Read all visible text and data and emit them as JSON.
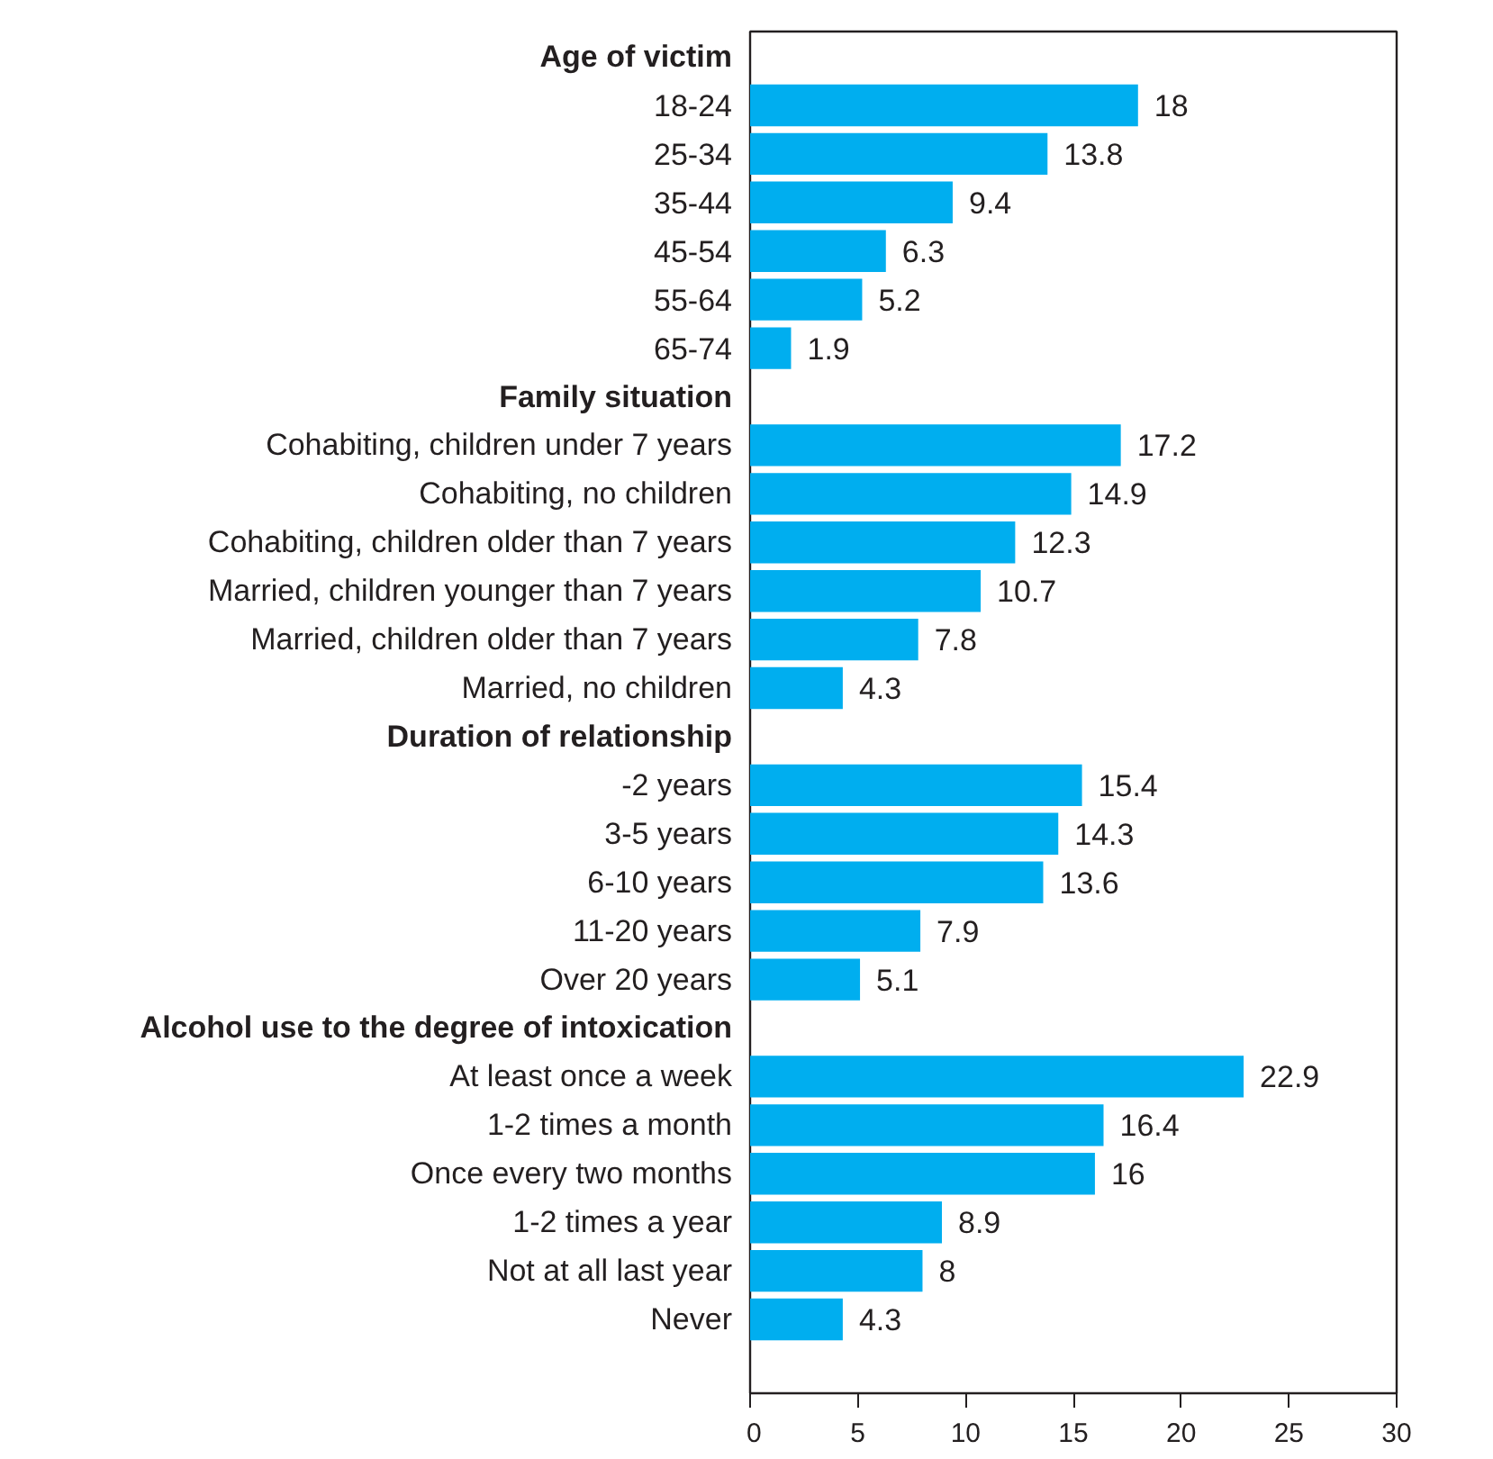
{
  "chart_data": {
    "type": "bar",
    "orientation": "horizontal",
    "categories": [
      "Age of victim",
      "18-24",
      "25-34",
      "35-44",
      "45-54",
      "55-64",
      "65-74",
      "Family situation",
      "Cohabiting, children under 7 years",
      "Cohabiting, no children",
      "Cohabiting, children older than 7 years",
      "Married, children younger than 7 years",
      "Married, children older than 7 years",
      "Married, no children",
      "Duration of relationship",
      "-2 years",
      "3-5 years",
      "6-10 years",
      "11-20 years",
      "Over 20 years",
      "Alcohol use to the degree of intoxication",
      "At least once a week",
      "1-2 times a month",
      "Once every two months",
      "1-2 times a year",
      "Not at all last year",
      "Never"
    ],
    "values": [
      null,
      18,
      13.8,
      9.4,
      6.3,
      5.2,
      1.9,
      null,
      17.2,
      14.9,
      12.3,
      10.7,
      7.8,
      4.3,
      null,
      15.4,
      14.3,
      13.6,
      7.9,
      5.1,
      null,
      22.9,
      16.4,
      16,
      8.9,
      8,
      4.3
    ],
    "color": "#00aeef",
    "xlim": [
      0,
      30
    ],
    "xticks": [
      0,
      5,
      10,
      15,
      20,
      25,
      30
    ],
    "data_labels": true
  }
}
